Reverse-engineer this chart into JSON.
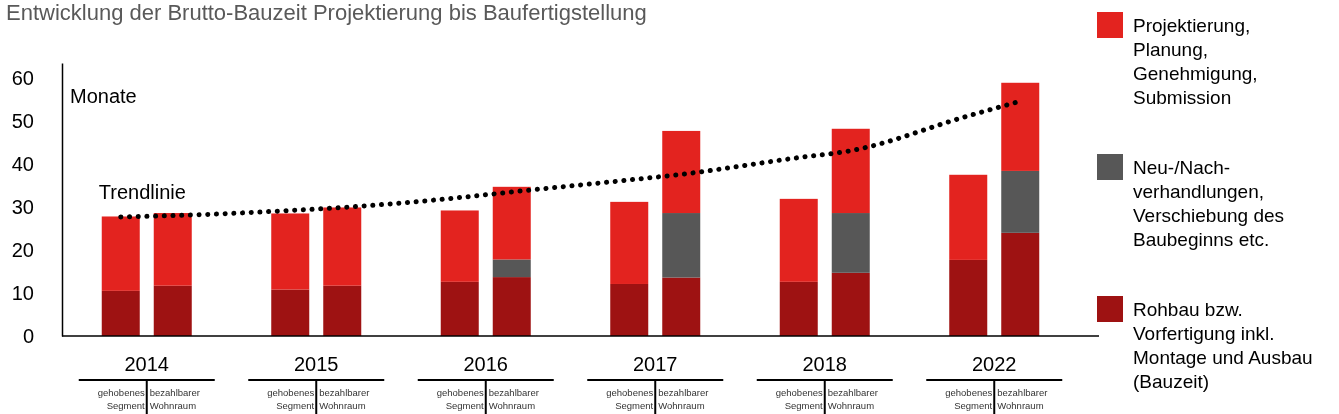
{
  "chart_data": {
    "type": "bar",
    "title": "Entwicklung der Brutto-Bauzeit Projektierung bis Baufertigstellung",
    "ylabel": "Monate",
    "categories": [
      "gehobenes Segment",
      "bezahlbarer Wohnraum",
      "gehobenes Segment",
      "bezahlbarer Wohnraum",
      "gehobenes Segment",
      "bezahlbarer Wohnraum",
      "gehobenes Segment",
      "bezahlbarer Wohnraum",
      "gehobenes Segment",
      "bezahlbarer Wohnraum",
      "gehobenes Segment",
      "bezahlbarer Wohnraum"
    ],
    "stacked": true,
    "ylim": [
      0,
      63.5
    ],
    "yticks": [
      0,
      10,
      20,
      30,
      40,
      50,
      60
    ],
    "legend": "right",
    "annotations": [
      "2014",
      "2015",
      "2016",
      "2017",
      "2018",
      "2022"
    ],
    "series": [
      {
        "name": "Rohbau bzw. Vorfertigung inkl. Montage und Ausbau (Bauzeit)",
        "color": "#9e1212",
        "values": [
          10.5,
          11.7,
          10.8,
          11.7,
          12.6,
          13.7,
          12.1,
          13.6,
          12.6,
          14.7,
          17.7,
          24.0
        ]
      },
      {
        "name": "Neu-/Nach-verhandlungen, Verschiebung des Baubeginns etc.",
        "color": "#575757",
        "values": [
          0,
          0,
          0,
          0,
          0,
          4.1,
          0,
          15.0,
          0,
          13.9,
          0,
          14.4
        ]
      },
      {
        "name": "Projektierung, Planung, Genehmigung, Submission",
        "color": "#e3231f",
        "values": [
          17.3,
          16.9,
          17.7,
          18.2,
          16.6,
          16.9,
          19.1,
          19.1,
          19.3,
          19.6,
          19.8,
          20.5
        ]
      },
      {
        "name": "Trendlinie",
        "type": "line",
        "color": "#000000",
        "line_style": "dotted",
        "values": [
          27.7,
          28.0,
          29.2,
          29.9,
          32.2,
          33.5,
          36.3,
          37.6,
          41.5,
          43.1,
          51.2,
          54.6
        ]
      }
    ]
  }
}
